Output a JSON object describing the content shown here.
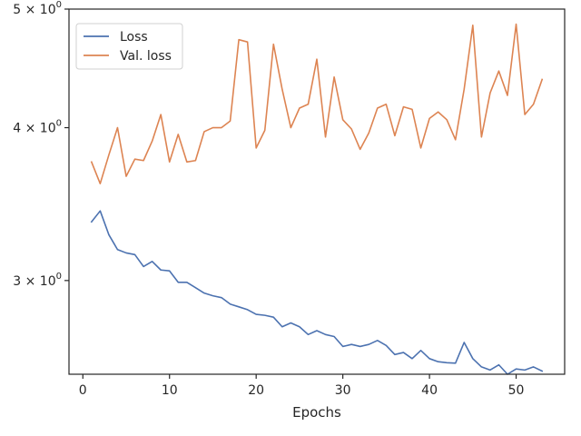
{
  "chart_data": {
    "type": "line",
    "title": "",
    "xlabel": "Epochs",
    "ylabel": "",
    "xlim": [
      -1.6,
      55.6
    ],
    "ylim": [
      2.515,
      5.0
    ],
    "yscale": "log",
    "grid": false,
    "legend_position": "top-left",
    "x_ticks": [
      0,
      10,
      20,
      30,
      40,
      50
    ],
    "x_tick_labels": [
      "0",
      "10",
      "20",
      "30",
      "40",
      "50"
    ],
    "y_ticks": [
      3,
      4,
      5
    ],
    "y_tick_labels": [
      {
        "mantissa": "3",
        "times": "×",
        "base": "10",
        "exp": "0"
      },
      {
        "mantissa": "4",
        "times": "×",
        "base": "10",
        "exp": "0"
      },
      {
        "mantissa": "5",
        "times": "×",
        "base": "10",
        "exp": "0"
      }
    ],
    "x": [
      1,
      2,
      3,
      4,
      5,
      6,
      7,
      8,
      9,
      10,
      11,
      12,
      13,
      14,
      15,
      16,
      17,
      18,
      19,
      20,
      21,
      22,
      23,
      24,
      25,
      26,
      27,
      28,
      29,
      30,
      31,
      32,
      33,
      34,
      35,
      36,
      37,
      38,
      39,
      40,
      41,
      42,
      43,
      44,
      45,
      46,
      47,
      48,
      49,
      50,
      51,
      52,
      53
    ],
    "series": [
      {
        "name": "Loss",
        "color": "#4c72b0",
        "values": [
          3.35,
          3.42,
          3.27,
          3.18,
          3.16,
          3.15,
          3.08,
          3.11,
          3.06,
          3.055,
          2.99,
          2.99,
          2.96,
          2.93,
          2.915,
          2.905,
          2.87,
          2.855,
          2.84,
          2.815,
          2.81,
          2.8,
          2.75,
          2.77,
          2.75,
          2.71,
          2.73,
          2.71,
          2.7,
          2.65,
          2.66,
          2.65,
          2.66,
          2.68,
          2.655,
          2.61,
          2.62,
          2.59,
          2.63,
          2.59,
          2.575,
          2.57,
          2.568,
          2.67,
          2.59,
          2.55,
          2.535,
          2.56,
          2.515,
          2.54,
          2.535,
          2.55,
          2.53
        ]
      },
      {
        "name": "Val. loss",
        "color": "#dd8452",
        "values": [
          3.75,
          3.6,
          3.8,
          4.0,
          3.65,
          3.77,
          3.76,
          3.9,
          4.1,
          3.75,
          3.95,
          3.75,
          3.76,
          3.97,
          4.0,
          4.0,
          4.05,
          4.72,
          4.7,
          3.85,
          3.98,
          4.68,
          4.3,
          4.0,
          4.15,
          4.18,
          4.55,
          3.93,
          4.4,
          4.06,
          3.99,
          3.84,
          3.96,
          4.15,
          4.18,
          3.94,
          4.16,
          4.14,
          3.85,
          4.07,
          4.12,
          4.06,
          3.91,
          4.3,
          4.85,
          3.93,
          4.27,
          4.45,
          4.25,
          4.86,
          4.1,
          4.18,
          4.38
        ]
      }
    ]
  }
}
